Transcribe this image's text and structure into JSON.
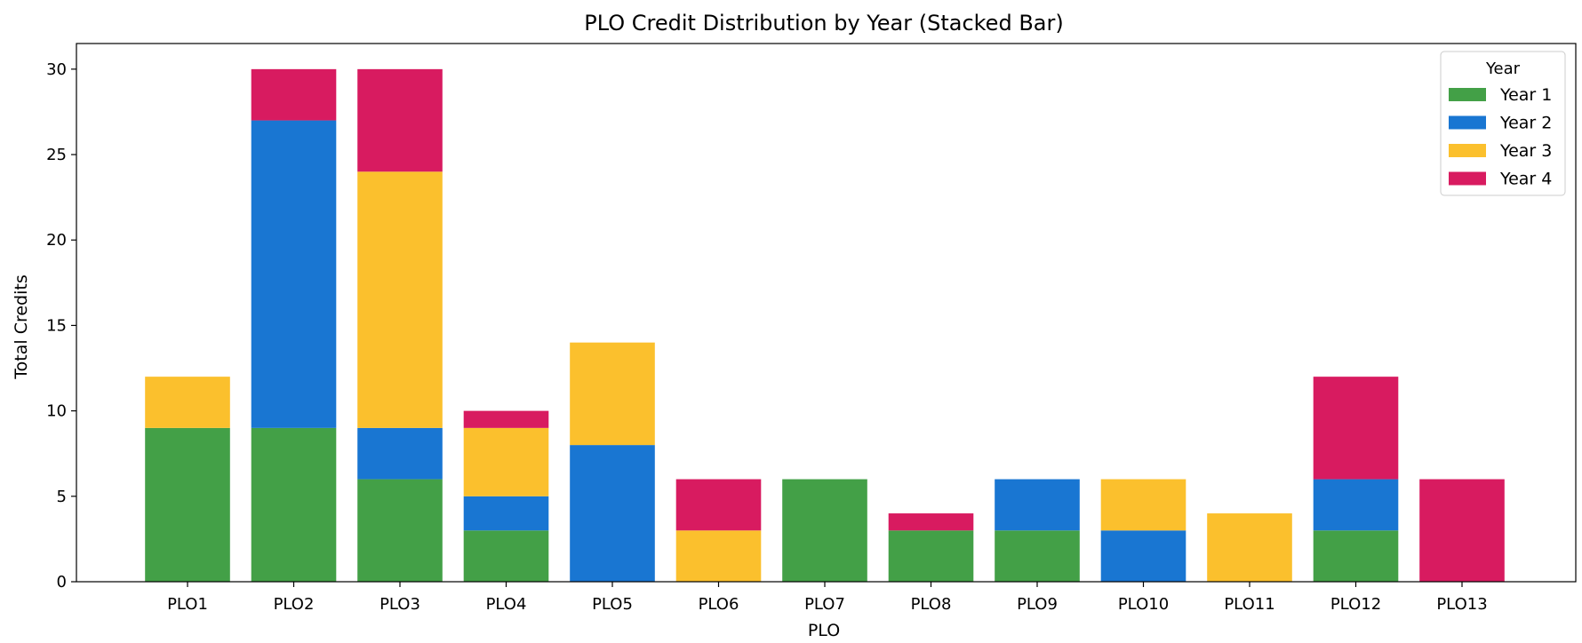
{
  "chart_data": {
    "type": "bar",
    "stacked": true,
    "title": "PLO Credit Distribution by Year (Stacked Bar)",
    "xlabel": "PLO",
    "ylabel": "Total Credits",
    "ylim": [
      0,
      31.5
    ],
    "yticks": [
      0,
      5,
      10,
      15,
      20,
      25,
      30
    ],
    "grid": false,
    "categories": [
      "PLO1",
      "PLO2",
      "PLO3",
      "PLO4",
      "PLO5",
      "PLO6",
      "PLO7",
      "PLO8",
      "PLO9",
      "PLO10",
      "PLO11",
      "PLO12",
      "PLO13"
    ],
    "legend": {
      "title": "Year",
      "position": "top-right"
    },
    "series": [
      {
        "name": "Year 1",
        "color": "#43a047",
        "values": [
          9,
          9,
          6,
          3,
          0,
          0,
          6,
          3,
          3,
          0,
          0,
          3,
          0
        ]
      },
      {
        "name": "Year 2",
        "color": "#1976d2",
        "values": [
          0,
          18,
          3,
          2,
          8,
          0,
          0,
          0,
          3,
          3,
          0,
          3,
          0
        ]
      },
      {
        "name": "Year 3",
        "color": "#fbc02d",
        "values": [
          3,
          0,
          15,
          4,
          6,
          3,
          0,
          0,
          0,
          3,
          4,
          0,
          0
        ]
      },
      {
        "name": "Year 4",
        "color": "#d81b60",
        "values": [
          0,
          3,
          6,
          1,
          0,
          3,
          0,
          1,
          0,
          0,
          0,
          6,
          6
        ]
      }
    ]
  }
}
